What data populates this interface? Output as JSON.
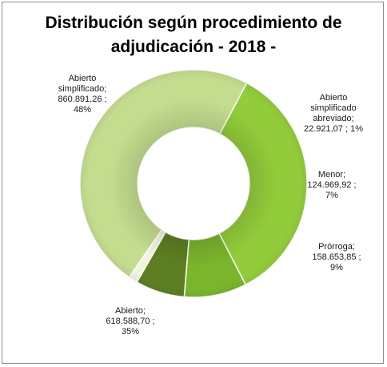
{
  "chart_data": {
    "type": "pie",
    "variant": "doughnut",
    "title_lines": [
      "Distribución según procedimiento de",
      "adjudicación - 2018 -"
    ],
    "legend": "none",
    "slices": [
      {
        "name": "Abierto simplificado",
        "value": 860891.26,
        "value_text": "860.891,26",
        "percent_text": "48%",
        "color": "#c3dc8e",
        "label_lines": [
          "Abierto",
          "simplificado;",
          "860.891,26   ;",
          "48%"
        ]
      },
      {
        "name": "Abierto simplificado abreviado",
        "value": 22921.07,
        "value_text": "22.921,07",
        "percent_text": "1%",
        "color": "#eef4df",
        "label_lines": [
          "Abierto",
          "simplificado",
          "abreviado;",
          "22.921,07   ; 1%"
        ]
      },
      {
        "name": "Menor",
        "value": 124969.92,
        "value_text": "124.969,92",
        "percent_text": "7%",
        "color": "#5d7f22",
        "label_lines": [
          "Menor;",
          "124.969,92   ;",
          "7%"
        ]
      },
      {
        "name": "Prórroga",
        "value": 158653.85,
        "value_text": "158.653,85",
        "percent_text": "9%",
        "color": "#7ab52c",
        "label_lines": [
          "Prórroga;",
          "158.653,85   ;",
          "9%"
        ]
      },
      {
        "name": "Abierto",
        "value": 618588.7,
        "value_text": "618.588,70",
        "percent_text": "35%",
        "color": "#92cc3a",
        "label_lines": [
          "Abierto;",
          "618.588,70   ;",
          "35%"
        ]
      }
    ]
  }
}
